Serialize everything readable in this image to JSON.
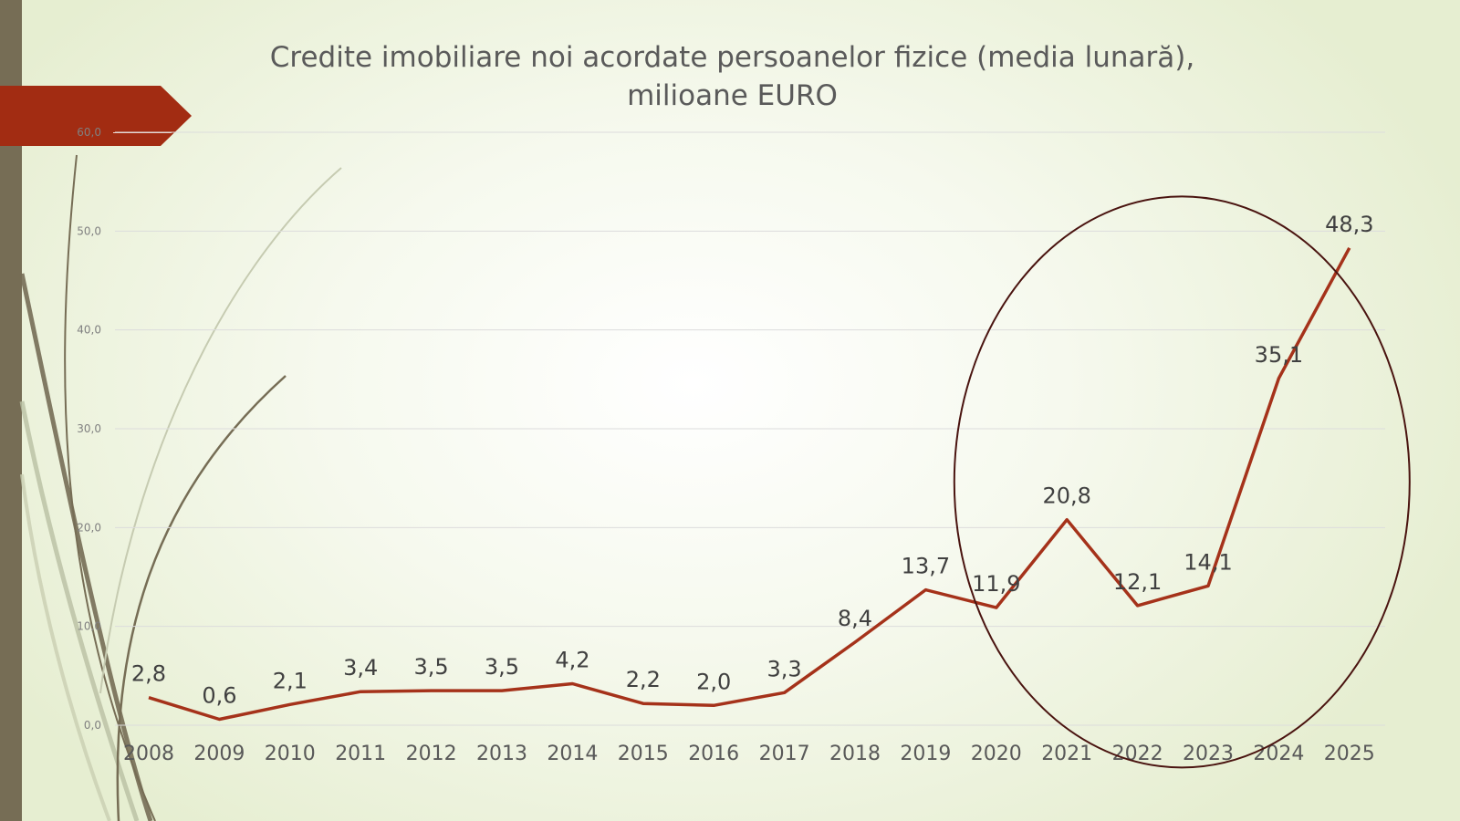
{
  "slide": {
    "title_line1": "Credite imobiliare noi acordate persoanelor fizice (media lunară),",
    "title_line2": "milioane EURO"
  },
  "colors": {
    "line": "#a5321a",
    "ellipse": "#4a1410",
    "accent_tab": "#a22c12",
    "left_bar": "#766d55",
    "gridline": "#dcdcdc"
  },
  "chart_data": {
    "type": "line",
    "title": "Credite imobiliare noi acordate persoanelor fizice (media lunară), milioane EURO",
    "x": [
      "2008",
      "2009",
      "2010",
      "2011",
      "2012",
      "2013",
      "2014",
      "2015",
      "2016",
      "2017",
      "2018",
      "2019",
      "2020",
      "2021",
      "2022",
      "2023",
      "2024",
      "2025"
    ],
    "series": [
      {
        "values": [
          2.8,
          0.6,
          2.1,
          3.4,
          3.5,
          3.5,
          4.2,
          2.2,
          2.0,
          3.3,
          8.4,
          13.7,
          11.9,
          20.8,
          12.1,
          14.1,
          35.1,
          48.3
        ],
        "labels": [
          "2,8",
          "0,6",
          "2,1",
          "3,4",
          "3,5",
          "3,5",
          "4,2",
          "2,2",
          "2,0",
          "3,3",
          "8,4",
          "13,7",
          "11,9",
          "20,8",
          "12,1",
          "14,1",
          "35,1",
          "48,3"
        ]
      }
    ],
    "ylim": [
      0,
      60
    ],
    "yticks": [
      0,
      10,
      20,
      30,
      40,
      50,
      60
    ],
    "ytick_labels": [
      "0,0",
      "10,0",
      "20,0",
      "30,0",
      "40,0",
      "50,0",
      "60,0"
    ],
    "grid": true,
    "legend": "none",
    "annotation": "ellipse highlighting 2020–2025"
  }
}
